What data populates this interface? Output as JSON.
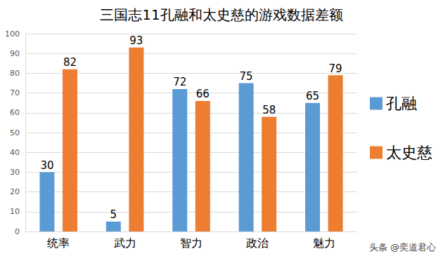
{
  "chart_data": {
    "type": "bar",
    "title": "三国志11孔融和太史慈的游戏数据差额",
    "categories": [
      "统率",
      "武力",
      "智力",
      "政治",
      "魅力"
    ],
    "series": [
      {
        "name": "孔融",
        "color": "#5b9bd5",
        "values": [
          30,
          5,
          72,
          75,
          65
        ]
      },
      {
        "name": "太史慈",
        "color": "#ed7d31",
        "values": [
          82,
          93,
          66,
          58,
          79
        ]
      }
    ],
    "ylim": [
      0,
      100
    ],
    "yticks": [
      0,
      10,
      20,
      30,
      40,
      50,
      60,
      70,
      80,
      90,
      100
    ],
    "grid": true,
    "data_labels": true,
    "legend": "right",
    "annotations": [
      "头条 @奕道君心"
    ]
  }
}
